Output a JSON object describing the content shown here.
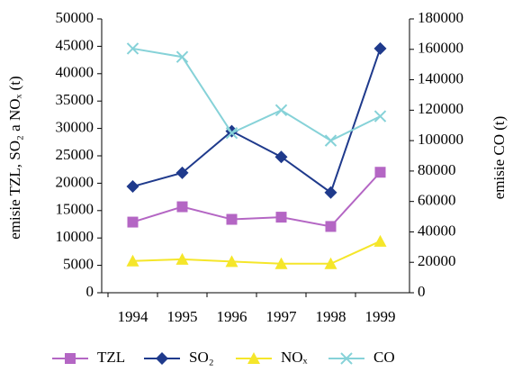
{
  "chart_data": {
    "type": "line",
    "categories": [
      "1994",
      "1995",
      "1996",
      "1997",
      "1998",
      "1999"
    ],
    "series": [
      {
        "name": "TZL",
        "color": "#b466c4",
        "marker": "square",
        "values": [
          12900,
          15700,
          13400,
          13800,
          12100,
          22000
        ]
      },
      {
        "name": "SO₂",
        "color": "#1f3a8c",
        "marker": "diamond",
        "values": [
          19400,
          21900,
          29500,
          24800,
          18300,
          44600
        ]
      },
      {
        "name": "NOₓ",
        "color": "#f5e62a",
        "marker": "triangle",
        "values": [
          5800,
          6100,
          5700,
          5300,
          5300,
          9400
        ]
      },
      {
        "name": "CO",
        "color": "#86d2d8",
        "marker": "x",
        "axis": "y2",
        "values": [
          160500,
          155000,
          105000,
          120000,
          100000,
          116000
        ]
      }
    ],
    "y_label": "emisie TZL, SO₂ a NOₓ (t)",
    "y2_label": "emisie CO (t)",
    "ylim": [
      0,
      50000
    ],
    "yticks": [
      0,
      5000,
      10000,
      15000,
      20000,
      25000,
      30000,
      35000,
      40000,
      45000,
      50000
    ],
    "y2lim": [
      0,
      180000
    ],
    "y2ticks": [
      0,
      20000,
      40000,
      60000,
      80000,
      100000,
      120000,
      140000,
      160000,
      180000
    ],
    "grid": false
  }
}
